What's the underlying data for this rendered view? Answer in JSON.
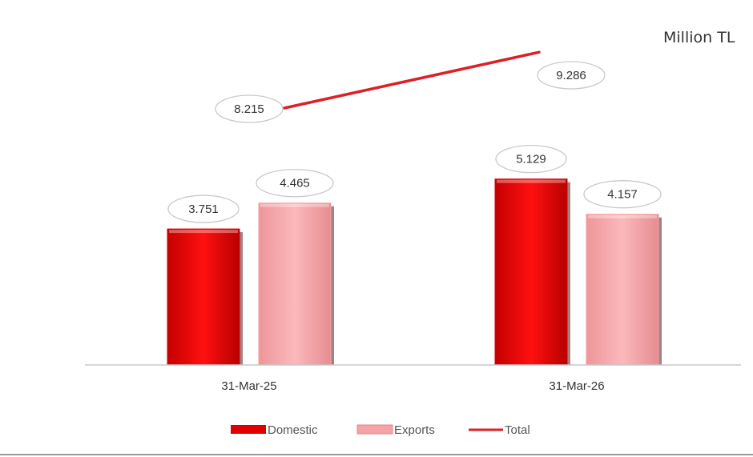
{
  "unit_label": "Million TL",
  "colors": {
    "domestic": "#e00000",
    "exports": "#f6a3a6",
    "total": "#dd1f26"
  },
  "chart_data": {
    "type": "bar",
    "categories": [
      "31-Mar-25",
      "31-Mar-26"
    ],
    "series": [
      {
        "name": "Domestic",
        "type": "bar",
        "values": [
          3.751,
          5.129
        ],
        "labels": [
          "3.751",
          "5.129"
        ]
      },
      {
        "name": "Exports",
        "type": "bar",
        "values": [
          4.465,
          4.157
        ],
        "labels": [
          "4.465",
          "4.157"
        ]
      },
      {
        "name": "Total",
        "type": "line",
        "values": [
          8.215,
          9.286
        ],
        "labels": [
          "8.215",
          "9.286"
        ]
      }
    ],
    "legend": [
      "Domestic",
      "Exports",
      "Total"
    ],
    "legend_position": "bottom",
    "grid": false
  }
}
